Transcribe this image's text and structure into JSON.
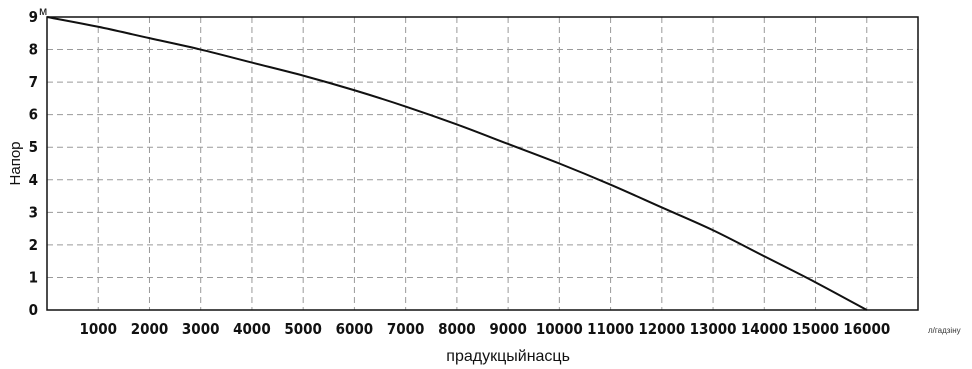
{
  "chart_data": {
    "type": "line",
    "title": "",
    "xlabel": "прадукцыйнасць",
    "ylabel": "Напор",
    "y_unit": "м",
    "x_unit": "л/гадзіну",
    "xlim": [
      0,
      17000
    ],
    "ylim": [
      0,
      9
    ],
    "grid": true,
    "x_ticks": [
      1000,
      2000,
      3000,
      4000,
      5000,
      6000,
      7000,
      8000,
      9000,
      10000,
      11000,
      12000,
      13000,
      14000,
      15000,
      16000
    ],
    "x_tick_labels": [
      "1000",
      "2000",
      "3000",
      "4000",
      "5000",
      "6000",
      "7000",
      "8000",
      "9000",
      "10000",
      "11000",
      "12000",
      "13000",
      "14000",
      "15000",
      "16000"
    ],
    "y_ticks": [
      0,
      1,
      2,
      3,
      4,
      5,
      6,
      7,
      8,
      9
    ],
    "y_tick_labels": [
      "0",
      "1",
      "2",
      "3",
      "4",
      "5",
      "6",
      "7",
      "8",
      "9"
    ],
    "series": [
      {
        "color": "#111111",
        "x": [
          0,
          1000,
          2000,
          3000,
          4000,
          5000,
          6000,
          7000,
          8000,
          9000,
          10000,
          11000,
          12000,
          13000,
          14000,
          15000,
          16000
        ],
        "y": [
          9.0,
          8.7,
          8.35,
          8.0,
          7.6,
          7.2,
          6.75,
          6.25,
          5.7,
          5.1,
          4.5,
          3.85,
          3.15,
          2.45,
          1.65,
          0.85,
          0.0
        ]
      }
    ]
  }
}
